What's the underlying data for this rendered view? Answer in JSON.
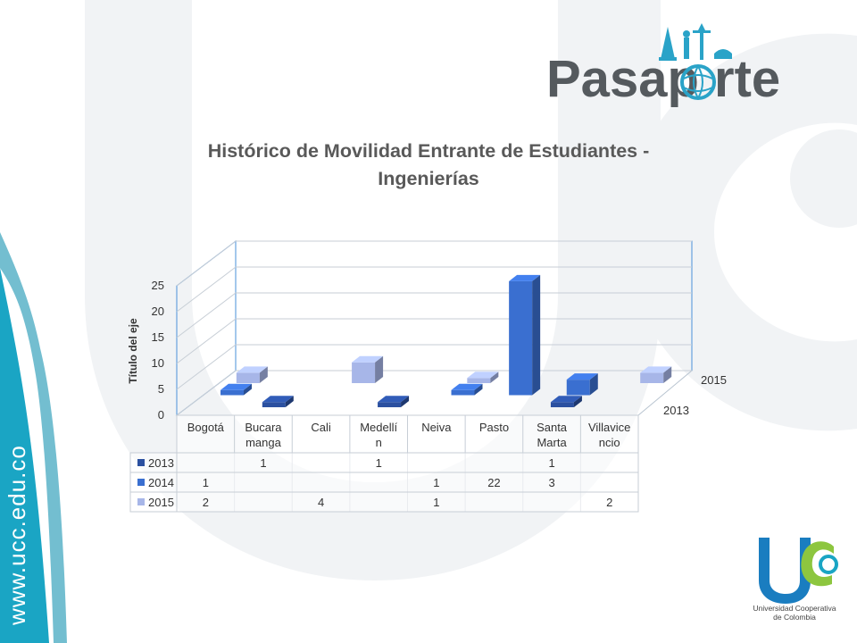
{
  "slide": {
    "sidebar_url": "www.ucc.edu.co",
    "logo_top_text": "Pasaporte",
    "logo_bottom_line1": "Universidad Cooperativa",
    "logo_bottom_line2": "de Colombia",
    "colors": {
      "teal": "#1AA5C4",
      "light_gray": "#E9EDF0",
      "ucc_blue": "#1A6FB3",
      "ucc_green": "#8DC63F"
    }
  },
  "chart_data": {
    "type": "bar",
    "title_line1": "Histórico de Movilidad Entrante de Estudiantes -",
    "title_line2": "Ingenierías",
    "ylabel": "Título del eje",
    "ylim": [
      0,
      25
    ],
    "yticks": [
      "0",
      "5",
      "10",
      "15",
      "20",
      "25"
    ],
    "categories": [
      "Bogotá",
      "Bucaramanga",
      "Cali",
      "Medellín",
      "Neiva",
      "Pasto",
      "Santa Marta",
      "Villavicencio"
    ],
    "category_labels": [
      [
        "Bogotá"
      ],
      [
        "Bucara",
        "manga"
      ],
      [
        "Cali"
      ],
      [
        "Medellí",
        "n"
      ],
      [
        "Neiva"
      ],
      [
        "Pasto"
      ],
      [
        "Santa",
        "Marta"
      ],
      [
        "Villavice",
        "ncio"
      ]
    ],
    "depth_labels": [
      "2015",
      "2013"
    ],
    "series": [
      {
        "name": "2013",
        "color": "#2B50A0",
        "values": [
          null,
          1,
          null,
          1,
          null,
          null,
          1,
          null
        ],
        "labels": [
          "",
          "1",
          "",
          "1",
          "",
          "",
          "1",
          ""
        ]
      },
      {
        "name": "2014",
        "color": "#3A6FD0",
        "values": [
          1,
          null,
          null,
          null,
          1,
          22,
          3,
          null
        ],
        "labels": [
          "1",
          "",
          "",
          "",
          "1",
          "22",
          "3",
          ""
        ]
      },
      {
        "name": "2015",
        "color": "#A7B6E8",
        "values": [
          2,
          null,
          4,
          null,
          1,
          null,
          null,
          2
        ],
        "labels": [
          "2",
          "",
          "4",
          "",
          "1",
          "",
          "",
          "2"
        ]
      }
    ]
  }
}
